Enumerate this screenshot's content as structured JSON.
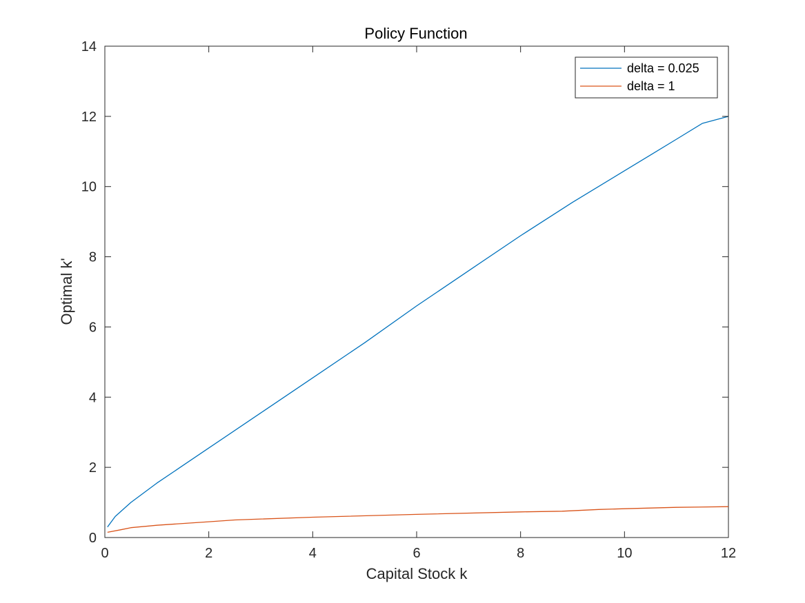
{
  "chart_data": {
    "type": "line",
    "title": "Policy Function",
    "xlabel": "Capital Stock k",
    "ylabel": "Optimal k'",
    "xlim": [
      0,
      12
    ],
    "ylim": [
      0,
      14
    ],
    "xticks": [
      0,
      2,
      4,
      6,
      8,
      10,
      12
    ],
    "yticks": [
      0,
      2,
      4,
      6,
      8,
      10,
      12,
      14
    ],
    "grid": false,
    "legend_position": "top-right",
    "series": [
      {
        "name": "delta = 0.025",
        "color": "#0072BD",
        "x": [
          0.05,
          0.2,
          0.5,
          1,
          1.5,
          2,
          3,
          4,
          5,
          6,
          7,
          8,
          9,
          10,
          10.5,
          11,
          11.5,
          12
        ],
        "y": [
          0.3,
          0.6,
          1.0,
          1.55,
          2.05,
          2.55,
          3.55,
          4.55,
          5.55,
          6.6,
          7.6,
          8.6,
          9.55,
          10.45,
          10.9,
          11.35,
          11.8,
          12.0
        ]
      },
      {
        "name": "delta = 1",
        "color": "#D95319",
        "x": [
          0.05,
          0.3,
          0.5,
          1,
          2,
          2.5,
          4,
          6,
          8,
          8.8,
          9.5,
          10,
          11,
          12
        ],
        "y": [
          0.15,
          0.22,
          0.28,
          0.35,
          0.45,
          0.5,
          0.58,
          0.66,
          0.73,
          0.75,
          0.8,
          0.82,
          0.86,
          0.88
        ]
      }
    ]
  }
}
